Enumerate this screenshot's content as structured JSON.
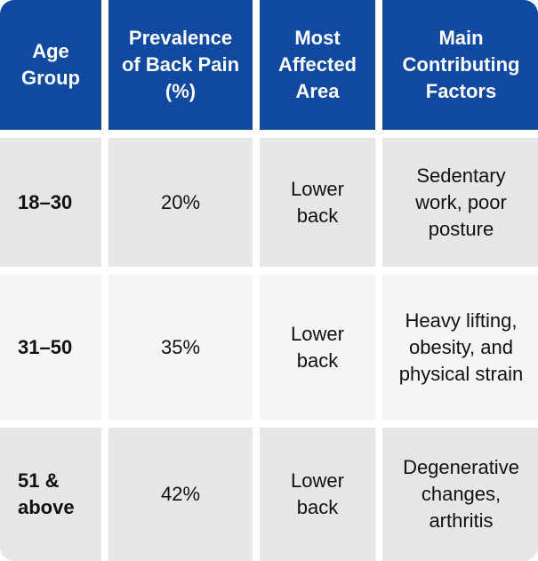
{
  "table": {
    "headers": [
      "Age Group",
      "Prevalence of Back Pain (%)",
      "Most Affected Area",
      "Main Contributing Factors"
    ],
    "rows": [
      {
        "age_group": "18–30",
        "prevalence": "20%",
        "area": "Lower back",
        "factors": "Sedentary work, poor posture"
      },
      {
        "age_group": "31–50",
        "prevalence": "35%",
        "area": "Lower back",
        "factors": "Heavy lifting, obesity, and physical strain"
      },
      {
        "age_group": "51 & above",
        "prevalence": "42%",
        "area": "Lower back",
        "factors": "Degenerative changes, arthritis"
      }
    ]
  },
  "colors": {
    "header_bg": "#1249a0",
    "row_dark": "#e6e6e6",
    "row_light": "#f5f5f5"
  }
}
